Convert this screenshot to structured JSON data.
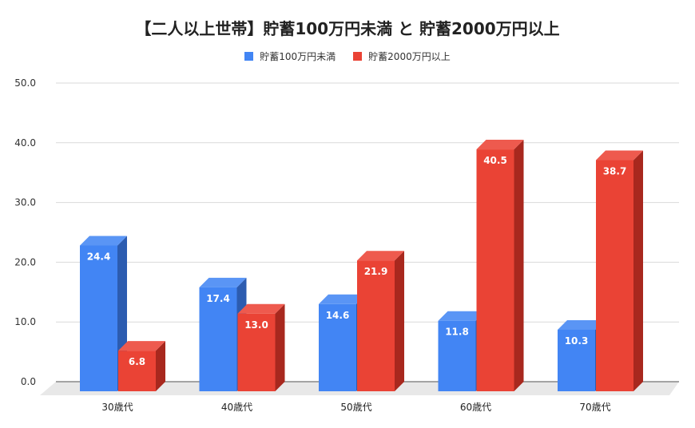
{
  "chart_data": {
    "type": "bar",
    "title": "【二人以上世帯】貯蓄100万円未満 と 貯蓄2000万円以上",
    "categories": [
      "30歳代",
      "40歳代",
      "50歳代",
      "60歳代",
      "70歳代"
    ],
    "series": [
      {
        "name": "貯蓄100万円未満",
        "values": [
          24.4,
          17.4,
          14.6,
          11.8,
          10.3
        ],
        "color": "#4285f4",
        "side_color": "#2c5cb0",
        "top_color": "#5a95f5"
      },
      {
        "name": "貯蓄2000万円以上",
        "values": [
          6.8,
          13.0,
          21.9,
          40.5,
          38.7
        ],
        "color": "#ea4335",
        "side_color": "#a8281e",
        "top_color": "#ee5a4e"
      }
    ],
    "ylim": [
      0,
      50
    ],
    "yticks": [
      "0.0",
      "10.0",
      "20.0",
      "30.0",
      "40.0",
      "50.0"
    ],
    "grid": true,
    "legend": "top",
    "style": "3d",
    "data_labels": true
  }
}
